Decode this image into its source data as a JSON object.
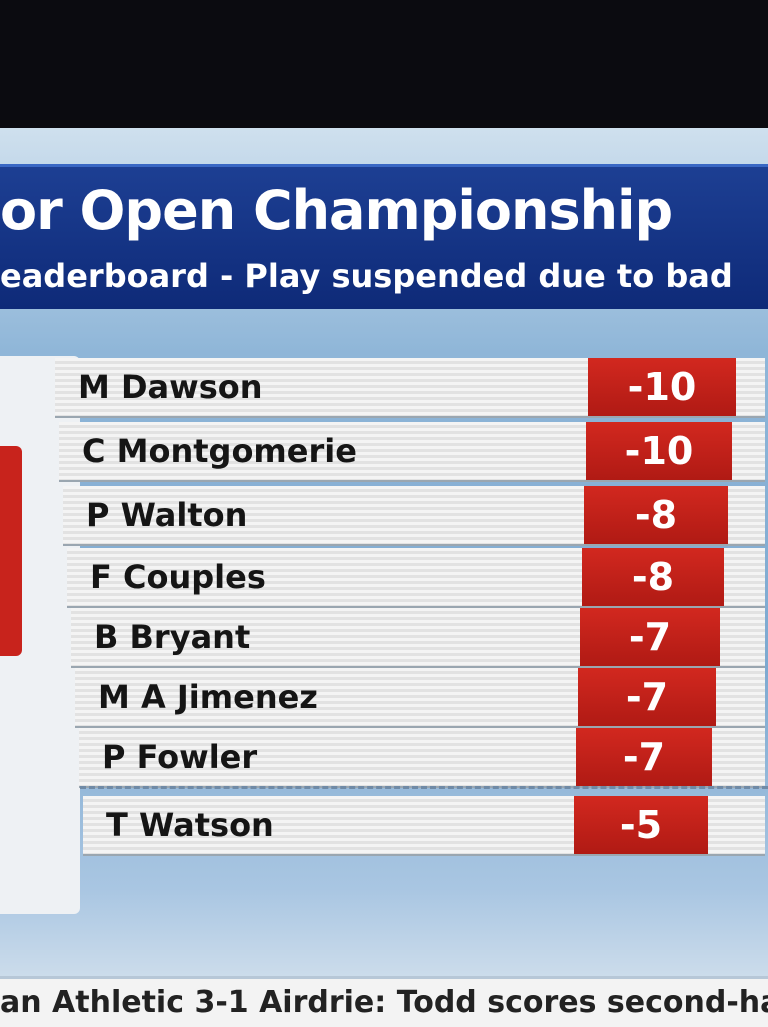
{
  "header": {
    "title": "or Open Championship",
    "subtitle": "eaderboard - Play suspended due to bad"
  },
  "table": {
    "rows": [
      {
        "name": "M Dawson",
        "score": -10
      },
      {
        "name": "C Montgomerie",
        "score": -10
      },
      {
        "name": "P Walton",
        "score": -8
      },
      {
        "name": "F Couples",
        "score": -8
      },
      {
        "name": "B Bryant",
        "score": -7
      },
      {
        "name": "M A Jimenez",
        "score": -7
      },
      {
        "name": "P Fowler",
        "score": -7
      },
      {
        "name": "T Watson",
        "score": -5
      }
    ]
  },
  "ticker": {
    "text": "an Athletic 3-1 Airdrie: Todd scores second-ha"
  }
}
